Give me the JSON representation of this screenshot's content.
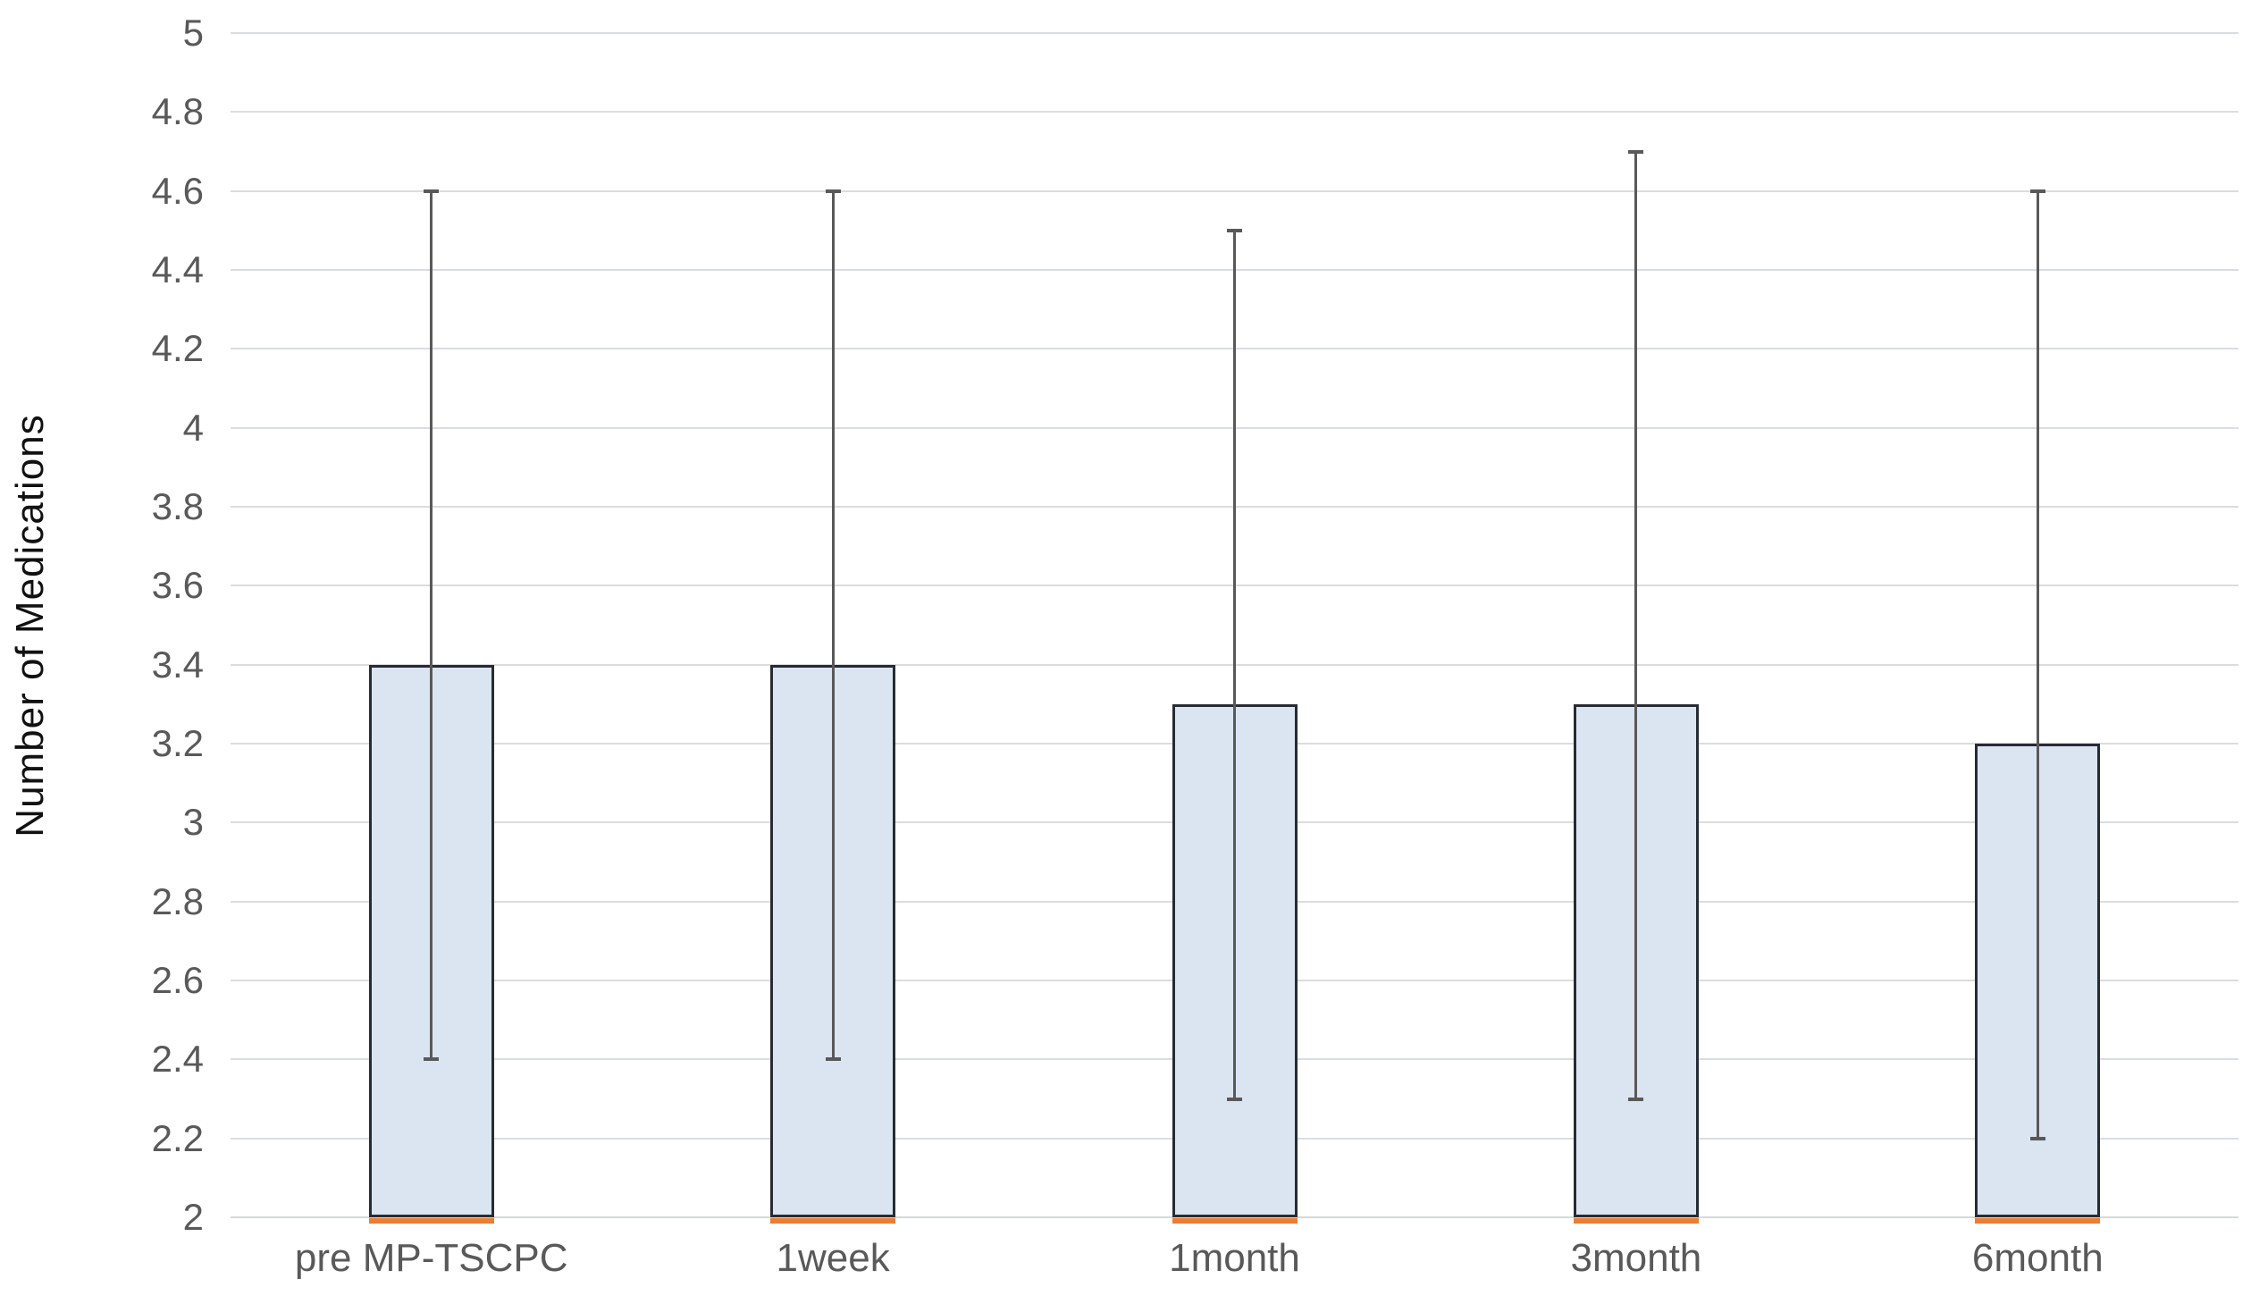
{
  "chart_data": {
    "type": "bar",
    "title": "",
    "xlabel": "",
    "ylabel": "Number of Medications",
    "categories": [
      "pre MP-TSCPC",
      "1week",
      "1month",
      "3month",
      "6month"
    ],
    "values": [
      3.4,
      3.4,
      3.3,
      3.3,
      3.2
    ],
    "whisker_top": [
      4.6,
      4.6,
      4.5,
      4.7,
      4.6
    ],
    "whisker_bottom": [
      2.4,
      2.4,
      2.3,
      2.3,
      2.2
    ],
    "ylim": [
      2,
      5
    ],
    "ytick_step": 0.2,
    "ytick_labels": [
      "2",
      "2.2",
      "2.4",
      "2.6",
      "2.8",
      "3",
      "3.2",
      "3.4",
      "3.6",
      "3.8",
      "4",
      "4.2",
      "4.4",
      "4.6",
      "4.8",
      "5"
    ],
    "grid": true,
    "legend": false,
    "colors": {
      "bar_fill": "#dbe5f2",
      "bar_border": "#272b33",
      "error_bar": "#595959",
      "gridline": "#dadde0",
      "baseline_strip": "#ed7d31",
      "tick_text": "#595959",
      "axis_title_text": "#111111",
      "background": "#ffffff"
    }
  }
}
